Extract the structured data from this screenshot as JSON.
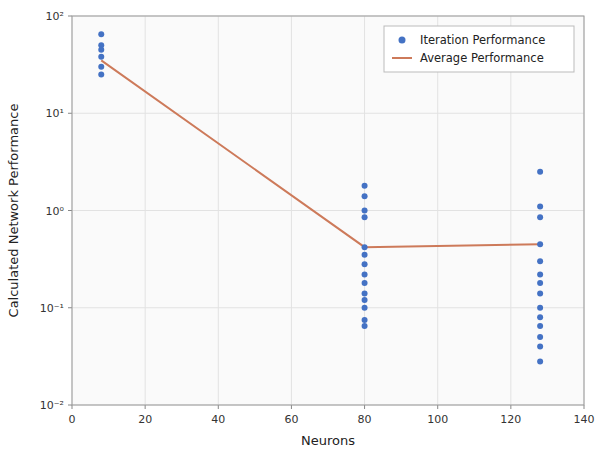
{
  "chart_data": {
    "type": "scatter",
    "xlabel": "Neurons",
    "ylabel": "Calculated Network Performance",
    "log": "y",
    "grid": true,
    "legend": "upper right",
    "xlim": [
      0,
      140
    ],
    "ylim": [
      0.01,
      100
    ],
    "xticks": [
      0,
      20,
      40,
      60,
      80,
      100,
      120,
      140
    ],
    "yticks": [
      {
        "value": 0.01,
        "label": "10⁻²"
      },
      {
        "value": 0.1,
        "label": "10⁻¹"
      },
      {
        "value": 1,
        "label": "10⁰"
      },
      {
        "value": 10,
        "label": "10¹"
      },
      {
        "value": 100,
        "label": "10²"
      }
    ],
    "series": [
      {
        "name": "Iteration Performance",
        "type": "scatter",
        "marker": "dot",
        "color": "#4472C4",
        "x": [
          8,
          8,
          8,
          8,
          8,
          8,
          80,
          80,
          80,
          80,
          80,
          80,
          80,
          80,
          80,
          80,
          80,
          80,
          80,
          80,
          128,
          128,
          128,
          128,
          128,
          128,
          128,
          128,
          128,
          128,
          128,
          128,
          128,
          128
        ],
        "values": [
          65,
          50,
          45,
          38,
          30,
          25,
          1.8,
          1.4,
          1.0,
          0.85,
          0.42,
          0.35,
          0.28,
          0.22,
          0.18,
          0.14,
          0.12,
          0.1,
          0.075,
          0.065,
          2.5,
          1.1,
          0.85,
          0.45,
          0.3,
          0.22,
          0.18,
          0.14,
          0.1,
          0.08,
          0.065,
          0.05,
          0.04,
          0.028
        ]
      },
      {
        "name": "Average Performance",
        "type": "line",
        "line_style": "solid",
        "color": "#CD7A5A",
        "x": [
          8,
          80,
          128
        ],
        "values": [
          35,
          0.42,
          0.45
        ]
      }
    ]
  }
}
